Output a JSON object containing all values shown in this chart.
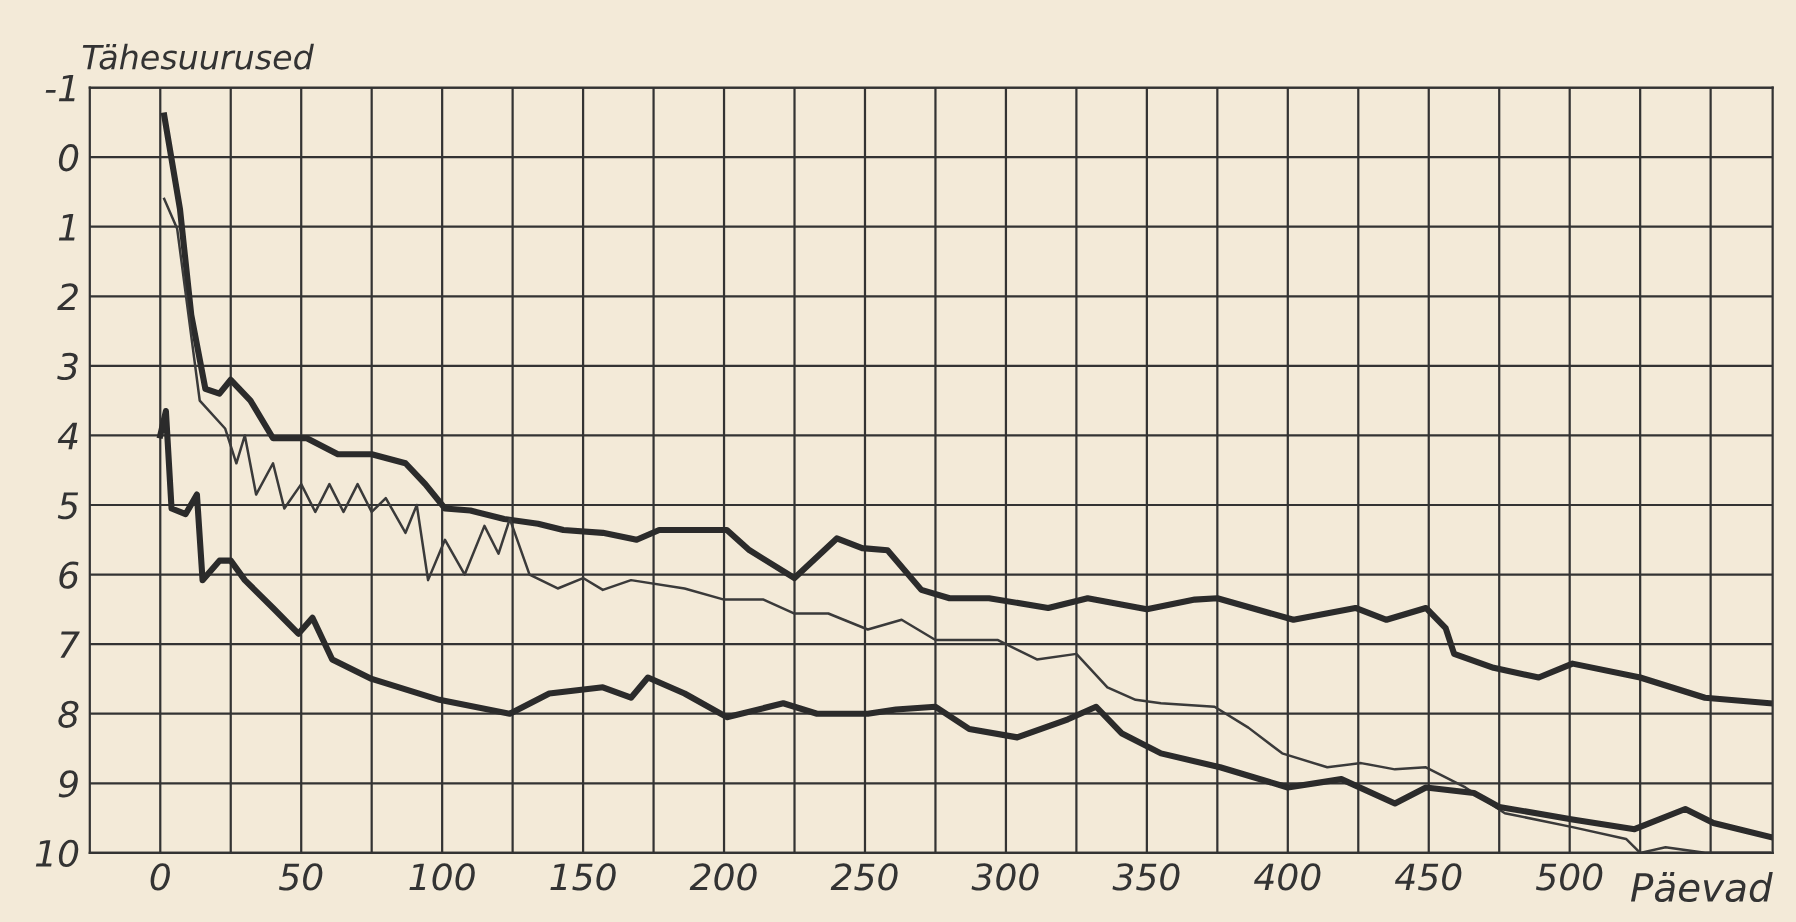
{
  "chart_data": {
    "type": "line",
    "ylabel": "Tähesuurused",
    "xlabel": "Päevad",
    "xlim": [
      -25,
      572
    ],
    "ylim": [
      10,
      -1
    ],
    "xticks": [
      0,
      {
        "value": 25,
        "label": null
      },
      50,
      {
        "value": 75,
        "label": null
      },
      100,
      {
        "value": 125,
        "label": null
      },
      150,
      {
        "value": 175,
        "label": null
      },
      200,
      {
        "value": 225,
        "label": null
      },
      250,
      {
        "value": 275,
        "label": null
      },
      300,
      {
        "value": 325,
        "label": null
      },
      350,
      {
        "value": 375,
        "label": null
      },
      400,
      {
        "value": 425,
        "label": null
      },
      450,
      {
        "value": 475,
        "label": null
      },
      500,
      {
        "value": 525,
        "label": null
      },
      {
        "value": 550,
        "label": null
      }
    ],
    "yticks": [
      -1,
      0,
      1,
      2,
      3,
      4,
      5,
      6,
      7,
      8,
      9,
      10
    ],
    "grid": true,
    "legend": false,
    "marker": "none",
    "line_style": "solid",
    "series": [
      {
        "color": "#2b2b2b",
        "x": [
          1.4,
          7,
          11,
          16,
          21,
          25,
          32,
          40,
          52,
          63,
          75,
          87,
          94,
          101,
          110,
          122,
          134,
          143,
          157,
          169,
          177,
          188,
          201,
          209,
          225,
          240,
          249,
          258,
          270,
          280,
          294,
          315,
          329,
          350,
          367,
          375,
          402,
          424,
          435,
          449,
          456,
          459,
          473,
          489,
          501,
          525,
          548,
          571
        ],
        "values": [
          -0.6,
          0.75,
          2.27,
          3.33,
          3.4,
          3.2,
          3.5,
          4.04,
          4.04,
          4.27,
          4.27,
          4.4,
          4.7,
          5.05,
          5.08,
          5.2,
          5.27,
          5.36,
          5.4,
          5.5,
          5.36,
          5.36,
          5.36,
          5.65,
          6.05,
          5.48,
          5.62,
          5.65,
          6.22,
          6.34,
          6.34,
          6.48,
          6.34,
          6.5,
          6.36,
          6.34,
          6.65,
          6.48,
          6.65,
          6.48,
          6.77,
          7.14,
          7.34,
          7.48,
          7.28,
          7.48,
          7.77,
          7.85
        ]
      },
      {
        "color": "#3a3a3a",
        "x": [
          1.4,
          6,
          14,
          23,
          27,
          30,
          34,
          40,
          44,
          50,
          55,
          60,
          65,
          70,
          75,
          80,
          87,
          91,
          95,
          101,
          108,
          115,
          120,
          124,
          131,
          141,
          150,
          157,
          167,
          186,
          200,
          214,
          225,
          237,
          251,
          263,
          275,
          297,
          311,
          325,
          336,
          346,
          355,
          374,
          386,
          398,
          414,
          426,
          438,
          449,
          463,
          477,
          501,
          520,
          525,
          534,
          548,
          571
        ],
        "values": [
          0.6,
          1.03,
          3.5,
          3.9,
          4.4,
          4.0,
          4.85,
          4.4,
          5.05,
          4.7,
          5.1,
          4.7,
          5.1,
          4.7,
          5.1,
          4.9,
          5.4,
          5.0,
          6.08,
          5.5,
          6.0,
          5.3,
          5.7,
          5.2,
          6.0,
          6.2,
          6.05,
          6.22,
          6.08,
          6.2,
          6.36,
          6.36,
          6.56,
          6.56,
          6.79,
          6.65,
          6.94,
          6.94,
          7.22,
          7.14,
          7.62,
          7.8,
          7.85,
          7.9,
          8.2,
          8.57,
          8.77,
          8.71,
          8.8,
          8.77,
          9.06,
          9.43,
          9.63,
          9.8,
          10.0,
          9.92,
          10.0,
          10.0
        ]
      },
      {
        "color": "#2b2b2b",
        "x": [
          0,
          2,
          4,
          9,
          13,
          15,
          21,
          25,
          30,
          40,
          49,
          54,
          61,
          75,
          99,
          124,
          138,
          157,
          167,
          173,
          186,
          201,
          221,
          233,
          251,
          261,
          275,
          287,
          304,
          322,
          332,
          341,
          355,
          376,
          400,
          419,
          438,
          449,
          466,
          475,
          501,
          523,
          541,
          551,
          571
        ],
        "values": [
          4.0,
          3.65,
          5.05,
          5.13,
          4.85,
          6.08,
          5.8,
          5.8,
          6.08,
          6.48,
          6.85,
          6.62,
          7.22,
          7.5,
          7.8,
          8.0,
          7.71,
          7.62,
          7.77,
          7.48,
          7.71,
          8.05,
          7.85,
          8.0,
          8.0,
          7.94,
          7.9,
          8.22,
          8.34,
          8.08,
          7.9,
          8.28,
          8.57,
          8.77,
          9.06,
          8.94,
          9.29,
          9.06,
          9.14,
          9.34,
          9.52,
          9.66,
          9.37,
          9.57,
          9.77
        ]
      }
    ]
  }
}
